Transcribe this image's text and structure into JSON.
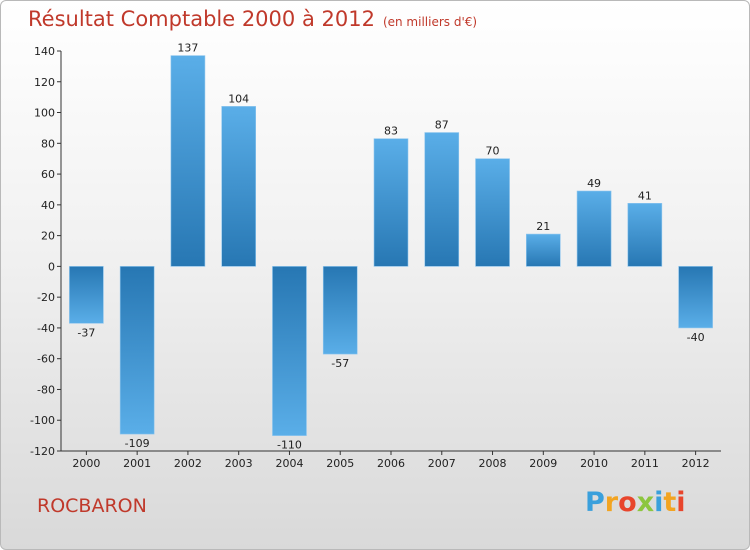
{
  "chart_data": {
    "type": "bar",
    "title": "Résultat Comptable 2000 à 2012",
    "subtitle": "(en milliers d'€)",
    "categories": [
      "2000",
      "2001",
      "2002",
      "2003",
      "2004",
      "2005",
      "2006",
      "2007",
      "2008",
      "2009",
      "2010",
      "2011",
      "2012"
    ],
    "values": [
      -37,
      -109,
      137,
      104,
      -110,
      -57,
      83,
      87,
      70,
      21,
      49,
      41,
      -40
    ],
    "ylim": [
      -120,
      140
    ],
    "yticks": [
      140,
      120,
      100,
      80,
      60,
      40,
      20,
      0,
      -20,
      -40,
      -60,
      -80,
      -100,
      -120
    ],
    "xlabel": "",
    "ylabel": "",
    "grid": false
  },
  "city": "ROCBARON",
  "brand": {
    "letters": [
      "P",
      "r",
      "o",
      "x",
      "i",
      "t",
      "i"
    ],
    "colors": [
      "#3aa0dc",
      "#f2a421",
      "#e8452c",
      "#8dc63f",
      "#3aa0dc",
      "#f2a421",
      "#e8452c"
    ]
  },
  "colors": {
    "bar_light": "#5aaee8",
    "bar_dark": "#2777b3",
    "title": "#c0392b"
  }
}
